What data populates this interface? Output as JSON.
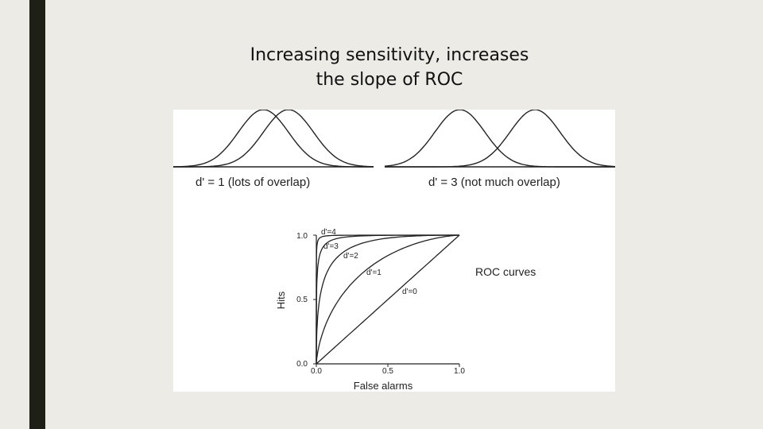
{
  "slide": {
    "title_line1": "Increasing sensitivity, increases",
    "title_line2": "the slope of ROC",
    "accent_color": "#1e1f17",
    "background_color": "#ecebe5"
  },
  "chart_data": [
    {
      "type": "line",
      "title": "",
      "caption": "d' = 1 (lots of overlap)",
      "series": [
        {
          "mean": 0,
          "sd": 1
        },
        {
          "mean": 1,
          "sd": 1
        }
      ],
      "grid": false
    },
    {
      "type": "line",
      "title": "",
      "caption": "d' = 3 (not much overlap)",
      "series": [
        {
          "mean": 0,
          "sd": 1
        },
        {
          "mean": 3,
          "sd": 1
        }
      ],
      "grid": false
    },
    {
      "type": "line",
      "title": "",
      "xlabel": "False alarms",
      "ylabel": "Hits",
      "xlim": [
        0,
        1
      ],
      "ylim": [
        0,
        1
      ],
      "xticks": [
        "0.0",
        "0.5",
        "1.0"
      ],
      "yticks": [
        "0.0",
        "0.5",
        "1.0"
      ],
      "side_label": "ROC curves",
      "series": [
        {
          "name": "d'=4",
          "dprime": 4
        },
        {
          "name": "d'=3",
          "dprime": 3
        },
        {
          "name": "d'=2",
          "dprime": 2
        },
        {
          "name": "d'=1",
          "dprime": 1
        },
        {
          "name": "d'=0",
          "dprime": 0
        }
      ],
      "grid": false
    }
  ]
}
